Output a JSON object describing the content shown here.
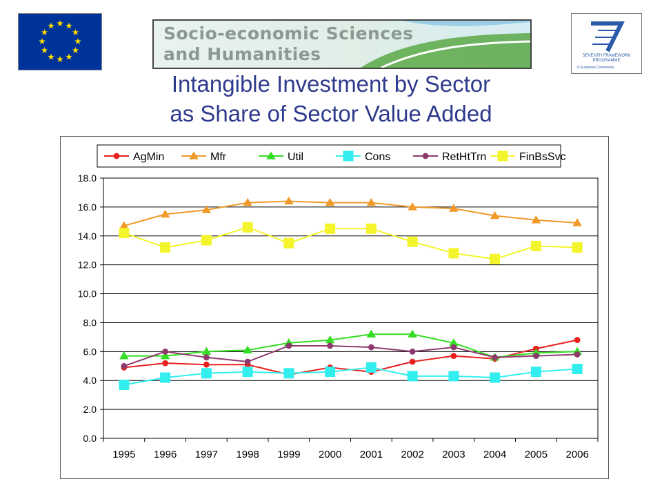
{
  "header": {
    "banner_line1": "Socio-economic Sciences",
    "banner_line2": "and Humanities",
    "fp7_line1": "SEVENTH FRAMEWORK",
    "fp7_line2": "PROGRAMME",
    "fp7_copyright": "© European Community"
  },
  "title_line1": "Intangible Investment by Sector",
  "title_line2": "as Share of Sector Value Added",
  "colors": {
    "title": "#2e3a8c",
    "eu_blue": "#003399",
    "eu_star": "#ffdd00",
    "fp7_blue": "#2a5aa8"
  },
  "chart_data": {
    "type": "line",
    "title": "",
    "xlabel": "",
    "ylabel": "",
    "x": [
      "1995",
      "1996",
      "1997",
      "1998",
      "1999",
      "2000",
      "2001",
      "2002",
      "2003",
      "2004",
      "2005",
      "2006"
    ],
    "ylim": [
      0,
      18
    ],
    "yticks": [
      "0.0",
      "2.0",
      "4.0",
      "6.0",
      "8.0",
      "10.0",
      "12.0",
      "14.0",
      "16.0",
      "18.0"
    ],
    "grid": true,
    "legend_position": "top",
    "series": [
      {
        "name": "AgMin",
        "color": "#e8201e",
        "marker": "circle",
        "values": [
          4.9,
          5.2,
          5.1,
          5.1,
          4.4,
          4.9,
          4.6,
          5.3,
          5.7,
          5.5,
          6.2,
          6.8
        ]
      },
      {
        "name": "Mfr",
        "color": "#f09a2a",
        "marker": "triangle",
        "values": [
          14.7,
          15.5,
          15.8,
          16.3,
          16.4,
          16.3,
          16.3,
          16.0,
          15.9,
          15.4,
          15.1,
          14.9
        ]
      },
      {
        "name": "Util",
        "color": "#33dd22",
        "marker": "triangle",
        "values": [
          5.7,
          5.7,
          6.0,
          6.1,
          6.6,
          6.8,
          7.2,
          7.2,
          6.6,
          5.6,
          5.9,
          6.0
        ]
      },
      {
        "name": "Cons",
        "color": "#33eeee",
        "marker": "square",
        "values": [
          3.7,
          4.2,
          4.5,
          4.6,
          4.5,
          4.6,
          4.9,
          4.3,
          4.3,
          4.2,
          4.6,
          4.8
        ]
      },
      {
        "name": "RetHtTrn",
        "color": "#8e3a6e",
        "marker": "circle",
        "values": [
          5.0,
          6.0,
          5.6,
          5.3,
          6.4,
          6.4,
          6.3,
          6.0,
          6.3,
          5.6,
          5.7,
          5.8
        ]
      },
      {
        "name": "FinBsSvc",
        "color": "#f4f42c",
        "marker": "square",
        "values": [
          14.2,
          13.2,
          13.7,
          14.6,
          13.5,
          14.5,
          14.5,
          13.6,
          12.8,
          12.4,
          13.3,
          13.2
        ]
      }
    ]
  }
}
